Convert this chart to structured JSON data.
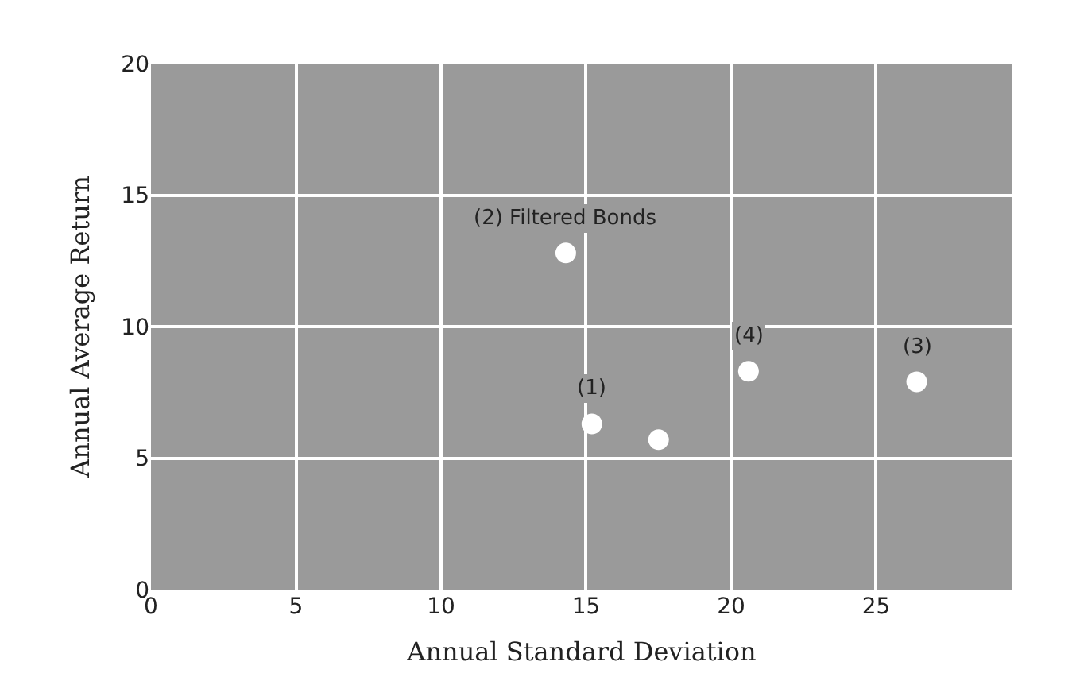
{
  "chart_data": {
    "type": "scatter",
    "xlabel": "Annual Standard Deviation",
    "ylabel": "Annual Average Return",
    "x": [
      14.3,
      15.2,
      17.5,
      20.6,
      26.4
    ],
    "values": [
      12.8,
      6.3,
      5.7,
      8.3,
      7.9
    ],
    "color": "#ffffff",
    "xlim": [
      0,
      29.7
    ],
    "xticks": [
      0,
      5,
      10,
      15,
      20,
      25
    ],
    "ylim": [
      0,
      20
    ],
    "yticks": [
      0,
      5,
      10,
      15,
      20
    ],
    "grid": true,
    "marker": "circle",
    "annotations": [
      {
        "text": "(2) Filtered Bonds",
        "x": 14.3,
        "y": 12.8
      },
      {
        "text": "(1)",
        "x": 15.2,
        "y": 6.3
      },
      {
        "text": "(4)",
        "x": 20.6,
        "y": 8.3
      },
      {
        "text": "(3)",
        "x": 26.4,
        "y": 7.9
      }
    ]
  }
}
